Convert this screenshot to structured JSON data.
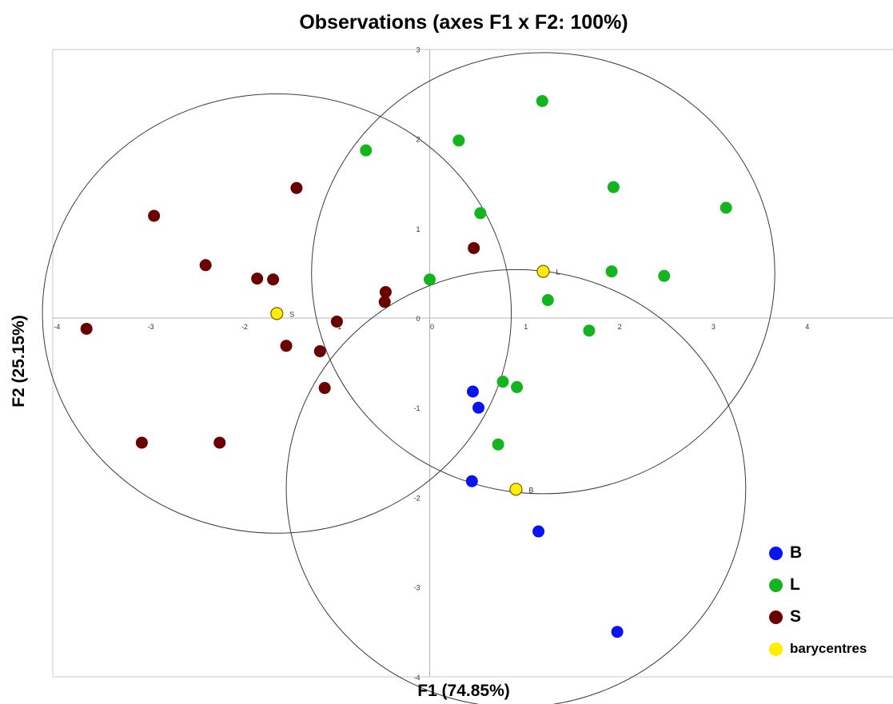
{
  "chart_data": {
    "type": "scatter",
    "title": "Observations (axes F1 x F2: 100%)",
    "xlabel": "F1 (74.85%)",
    "ylabel": "F2 (25.15%)",
    "xlim": [
      -4,
      5
    ],
    "ylim": [
      -4,
      3
    ],
    "x_ticks": [
      -4,
      -3,
      -2,
      -1,
      0,
      1,
      2,
      3,
      4
    ],
    "y_ticks": [
      -4,
      -3,
      -2,
      -1,
      0,
      1,
      2,
      3
    ],
    "grid": false,
    "legend_position": "bottom-right",
    "series": [
      {
        "name": "B",
        "color": "#0a14ee",
        "points": [
          [
            0.46,
            -0.82
          ],
          [
            0.52,
            -1.0
          ],
          [
            0.45,
            -1.82
          ],
          [
            1.16,
            -2.38
          ],
          [
            2.0,
            -3.5
          ]
        ]
      },
      {
        "name": "L",
        "color": "#14b41e",
        "points": [
          [
            -0.68,
            1.87
          ],
          [
            0.31,
            1.98
          ],
          [
            1.2,
            2.42
          ],
          [
            1.96,
            1.46
          ],
          [
            3.16,
            1.23
          ],
          [
            0.54,
            1.17
          ],
          [
            0.0,
            0.43
          ],
          [
            1.94,
            0.52
          ],
          [
            2.5,
            0.47
          ],
          [
            1.26,
            0.2
          ],
          [
            1.7,
            -0.14
          ],
          [
            0.78,
            -0.71
          ],
          [
            0.93,
            -0.77
          ],
          [
            0.73,
            -1.41
          ]
        ]
      },
      {
        "name": "S",
        "color": "#6b0000",
        "points": [
          [
            -3.66,
            -0.12
          ],
          [
            -2.94,
            1.14
          ],
          [
            -2.39,
            0.59
          ],
          [
            -1.84,
            0.44
          ],
          [
            -1.67,
            0.43
          ],
          [
            -1.42,
            1.45
          ],
          [
            -0.47,
            0.29
          ],
          [
            -0.48,
            0.18
          ],
          [
            0.47,
            0.78
          ],
          [
            -0.99,
            -0.04
          ],
          [
            -1.53,
            -0.31
          ],
          [
            -1.17,
            -0.37
          ],
          [
            -1.12,
            -0.78
          ],
          [
            -3.07,
            -1.39
          ],
          [
            -2.24,
            -1.39
          ]
        ]
      }
    ],
    "barycentres": {
      "name": "barycentres",
      "color": "#ffee00",
      "points": [
        {
          "label": "B",
          "x": 0.92,
          "y": -1.91
        },
        {
          "label": "L",
          "x": 1.21,
          "y": 0.52
        },
        {
          "label": "S",
          "x": -1.63,
          "y": 0.05
        }
      ]
    },
    "circles": [
      {
        "center": "S",
        "cx": -1.63,
        "cy": 0.05,
        "rx": 2.5,
        "ry": 2.45
      },
      {
        "center": "L",
        "cx": 1.21,
        "cy": 0.5,
        "rx": 2.47,
        "ry": 2.46
      },
      {
        "center": "B",
        "cx": 0.92,
        "cy": -1.9,
        "rx": 2.45,
        "ry": 2.44
      }
    ]
  },
  "legend": {
    "items": [
      {
        "label": "B",
        "color": "#0a14ee"
      },
      {
        "label": "L",
        "color": "#14b41e"
      },
      {
        "label": "S",
        "color": "#6b0000"
      },
      {
        "label": "barycentres",
        "color": "#ffee00"
      }
    ]
  }
}
